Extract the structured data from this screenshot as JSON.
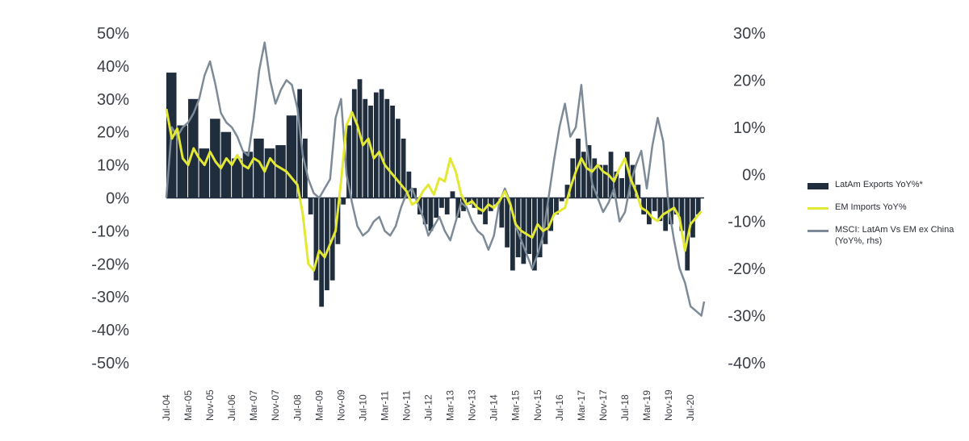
{
  "chart_data": {
    "type": "bar+line",
    "title": "",
    "colors": {
      "exports": "#1f2d3d",
      "imports": "#e3e833",
      "msci": "#7d8a97",
      "text": "#3b3f46"
    },
    "y_left": {
      "ylim": [
        -50,
        50
      ],
      "ticks": [
        "50%",
        "40%",
        "30%",
        "20%",
        "10%",
        "0%",
        "-10%",
        "-20%",
        "-30%",
        "-40%",
        "-50%"
      ]
    },
    "y_right": {
      "ylim": [
        -40,
        30
      ],
      "ticks": [
        "30%",
        "20%",
        "10%",
        "0%",
        "-10%",
        "-20%",
        "-30%",
        "-40%"
      ]
    },
    "x_ticks": [
      "Jul-04",
      "Mar-05",
      "Nov-05",
      "Jul-06",
      "Mar-07",
      "Nov-07",
      "Jul-08",
      "Mar-09",
      "Nov-09",
      "Jul-10",
      "Mar-11",
      "Nov-11",
      "Jul-12",
      "Mar-13",
      "Nov-13",
      "Jul-14",
      "Mar-15",
      "Nov-15",
      "Jul-16",
      "Mar-17",
      "Nov-17",
      "Jul-18",
      "Mar-19",
      "Nov-19",
      "Jul-20"
    ],
    "series": [
      {
        "name": "LatAm Exports YoY%*",
        "type": "bar",
        "axis": "left",
        "points": [
          [
            "Jul-04",
            38
          ],
          [
            "Nov-04",
            22
          ],
          [
            "Mar-05",
            30
          ],
          [
            "Jul-05",
            15
          ],
          [
            "Nov-05",
            24
          ],
          [
            "Mar-06",
            20
          ],
          [
            "Jul-06",
            12
          ],
          [
            "Nov-06",
            14
          ],
          [
            "Mar-07",
            18
          ],
          [
            "Jul-07",
            15
          ],
          [
            "Nov-07",
            16
          ],
          [
            "Mar-08",
            25
          ],
          [
            "Jul-08",
            33
          ],
          [
            "Sep-08",
            18
          ],
          [
            "Nov-08",
            -5
          ],
          [
            "Jan-09",
            -25
          ],
          [
            "Mar-09",
            -33
          ],
          [
            "May-09",
            -28
          ],
          [
            "Jul-09",
            -25
          ],
          [
            "Sep-09",
            -14
          ],
          [
            "Nov-09",
            -2
          ],
          [
            "Jan-10",
            22
          ],
          [
            "Mar-10",
            33
          ],
          [
            "May-10",
            36
          ],
          [
            "Jul-10",
            30
          ],
          [
            "Sep-10",
            28
          ],
          [
            "Nov-10",
            32
          ],
          [
            "Jan-11",
            33
          ],
          [
            "Mar-11",
            30
          ],
          [
            "May-11",
            28
          ],
          [
            "Jul-11",
            24
          ],
          [
            "Sep-11",
            18
          ],
          [
            "Nov-11",
            8
          ],
          [
            "Jan-12",
            3
          ],
          [
            "Mar-12",
            -5
          ],
          [
            "May-12",
            -8
          ],
          [
            "Jul-12",
            -10
          ],
          [
            "Sep-12",
            -6
          ],
          [
            "Nov-12",
            -3
          ],
          [
            "Jan-13",
            -5
          ],
          [
            "Mar-13",
            2
          ],
          [
            "May-13",
            -6
          ],
          [
            "Jul-13",
            -4
          ],
          [
            "Sep-13",
            -2
          ],
          [
            "Nov-13",
            -3
          ],
          [
            "Jan-14",
            -5
          ],
          [
            "Mar-14",
            -8
          ],
          [
            "May-14",
            -4
          ],
          [
            "Jul-14",
            -2
          ],
          [
            "Sep-14",
            -9
          ],
          [
            "Nov-14",
            -15
          ],
          [
            "Jan-15",
            -22
          ],
          [
            "Mar-15",
            -18
          ],
          [
            "May-15",
            -20
          ],
          [
            "Jul-15",
            -17
          ],
          [
            "Sep-15",
            -22
          ],
          [
            "Nov-15",
            -18
          ],
          [
            "Jan-16",
            -14
          ],
          [
            "Mar-16",
            -10
          ],
          [
            "May-16",
            -5
          ],
          [
            "Jul-16",
            -1
          ],
          [
            "Sep-16",
            4
          ],
          [
            "Nov-16",
            12
          ],
          [
            "Jan-17",
            18
          ],
          [
            "Mar-17",
            14
          ],
          [
            "May-17",
            16
          ],
          [
            "Jul-17",
            12
          ],
          [
            "Sep-17",
            10
          ],
          [
            "Nov-17",
            10
          ],
          [
            "Jan-18",
            14
          ],
          [
            "Mar-18",
            8
          ],
          [
            "May-18",
            6
          ],
          [
            "Jul-18",
            14
          ],
          [
            "Sep-18",
            10
          ],
          [
            "Nov-18",
            4
          ],
          [
            "Jan-19",
            -5
          ],
          [
            "Mar-19",
            -8
          ],
          [
            "May-19",
            -4
          ],
          [
            "Jul-19",
            -7
          ],
          [
            "Sep-19",
            -10
          ],
          [
            "Nov-19",
            -8
          ],
          [
            "Jan-20",
            -5
          ],
          [
            "Mar-20",
            -10
          ],
          [
            "May-20",
            -22
          ],
          [
            "Jul-20",
            -12
          ],
          [
            "Sep-20",
            -5
          ],
          [
            "Nov-20",
            -1
          ]
        ]
      },
      {
        "name": "EM Imports YoY%",
        "type": "line",
        "axis": "left",
        "points": [
          [
            "Jul-04",
            27
          ],
          [
            "Sep-04",
            18
          ],
          [
            "Nov-04",
            21
          ],
          [
            "Jan-05",
            12
          ],
          [
            "Mar-05",
            10
          ],
          [
            "May-05",
            15
          ],
          [
            "Jul-05",
            12
          ],
          [
            "Sep-05",
            10
          ],
          [
            "Nov-05",
            14
          ],
          [
            "Jan-06",
            11
          ],
          [
            "Mar-06",
            9
          ],
          [
            "May-06",
            12
          ],
          [
            "Jul-06",
            10
          ],
          [
            "Sep-06",
            13
          ],
          [
            "Nov-06",
            10
          ],
          [
            "Jan-07",
            9
          ],
          [
            "Mar-07",
            12
          ],
          [
            "May-07",
            11
          ],
          [
            "Jul-07",
            8
          ],
          [
            "Sep-07",
            12
          ],
          [
            "Nov-07",
            10
          ],
          [
            "Jan-08",
            9
          ],
          [
            "Mar-08",
            8
          ],
          [
            "May-08",
            6
          ],
          [
            "Jul-08",
            4
          ],
          [
            "Sep-08",
            -5
          ],
          [
            "Nov-08",
            -20
          ],
          [
            "Jan-09",
            -22
          ],
          [
            "Mar-09",
            -16
          ],
          [
            "May-09",
            -18
          ],
          [
            "Jul-09",
            -14
          ],
          [
            "Sep-09",
            -10
          ],
          [
            "Nov-09",
            5
          ],
          [
            "Jan-10",
            22
          ],
          [
            "Mar-10",
            26
          ],
          [
            "May-10",
            22
          ],
          [
            "Jul-10",
            16
          ],
          [
            "Sep-10",
            18
          ],
          [
            "Nov-10",
            12
          ],
          [
            "Jan-11",
            14
          ],
          [
            "Mar-11",
            10
          ],
          [
            "May-11",
            8
          ],
          [
            "Jul-11",
            6
          ],
          [
            "Sep-11",
            4
          ],
          [
            "Nov-11",
            2
          ],
          [
            "Jan-12",
            -2
          ],
          [
            "Mar-12",
            -1
          ],
          [
            "May-12",
            2
          ],
          [
            "Jul-12",
            4
          ],
          [
            "Sep-12",
            1
          ],
          [
            "Nov-12",
            6
          ],
          [
            "Jan-13",
            5
          ],
          [
            "Mar-13",
            12
          ],
          [
            "May-13",
            8
          ],
          [
            "Jul-13",
            1
          ],
          [
            "Sep-13",
            -2
          ],
          [
            "Nov-13",
            -1
          ],
          [
            "Jan-14",
            -3
          ],
          [
            "Mar-14",
            -4
          ],
          [
            "May-14",
            -2
          ],
          [
            "Jul-14",
            -3
          ],
          [
            "Sep-14",
            -1
          ],
          [
            "Nov-14",
            2
          ],
          [
            "Jan-15",
            -2
          ],
          [
            "Mar-15",
            -8
          ],
          [
            "May-15",
            -10
          ],
          [
            "Jul-15",
            -11
          ],
          [
            "Sep-15",
            -12
          ],
          [
            "Nov-15",
            -8
          ],
          [
            "Jan-16",
            -10
          ],
          [
            "Mar-16",
            -9
          ],
          [
            "May-16",
            -5
          ],
          [
            "Jul-16",
            -4
          ],
          [
            "Sep-16",
            -3
          ],
          [
            "Nov-16",
            3
          ],
          [
            "Jan-17",
            8
          ],
          [
            "Mar-17",
            12
          ],
          [
            "May-17",
            9
          ],
          [
            "Jul-17",
            8
          ],
          [
            "Sep-17",
            10
          ],
          [
            "Nov-17",
            8
          ],
          [
            "Jan-18",
            7
          ],
          [
            "Mar-18",
            5
          ],
          [
            "May-18",
            9
          ],
          [
            "Jul-18",
            12
          ],
          [
            "Sep-18",
            6
          ],
          [
            "Nov-18",
            2
          ],
          [
            "Jan-19",
            -3
          ],
          [
            "Mar-19",
            -4
          ],
          [
            "May-19",
            -6
          ],
          [
            "Jul-19",
            -7
          ],
          [
            "Sep-19",
            -5
          ],
          [
            "Nov-19",
            -4
          ],
          [
            "Jan-20",
            -3
          ],
          [
            "Mar-20",
            -6
          ],
          [
            "May-20",
            -16
          ],
          [
            "Jul-20",
            -8
          ],
          [
            "Sep-20",
            -6
          ],
          [
            "Nov-20",
            -4
          ]
        ]
      },
      {
        "name": "MSCI: LatAm Vs EM ex China (YoY%, rhs)",
        "type": "line",
        "axis": "right",
        "points": [
          [
            "Jul-04",
            -5
          ],
          [
            "Sep-04",
            10
          ],
          [
            "Nov-04",
            8
          ],
          [
            "Jan-05",
            10
          ],
          [
            "Mar-05",
            11
          ],
          [
            "May-05",
            13
          ],
          [
            "Jul-05",
            16
          ],
          [
            "Sep-05",
            21
          ],
          [
            "Nov-05",
            24
          ],
          [
            "Jan-06",
            19
          ],
          [
            "Mar-06",
            13
          ],
          [
            "May-06",
            11
          ],
          [
            "Jul-06",
            10
          ],
          [
            "Sep-06",
            8
          ],
          [
            "Nov-06",
            5
          ],
          [
            "Jan-07",
            4
          ],
          [
            "Mar-07",
            12
          ],
          [
            "May-07",
            22
          ],
          [
            "Jul-07",
            28
          ],
          [
            "Sep-07",
            20
          ],
          [
            "Nov-07",
            15
          ],
          [
            "Jan-08",
            18
          ],
          [
            "Mar-08",
            20
          ],
          [
            "May-08",
            19
          ],
          [
            "Jul-08",
            14
          ],
          [
            "Sep-08",
            4
          ],
          [
            "Nov-08",
            -1
          ],
          [
            "Jan-09",
            -4
          ],
          [
            "Mar-09",
            -5
          ],
          [
            "May-09",
            -3
          ],
          [
            "Jul-09",
            -1
          ],
          [
            "Sep-09",
            12
          ],
          [
            "Nov-09",
            16
          ],
          [
            "Jan-10",
            0
          ],
          [
            "Mar-10",
            -6
          ],
          [
            "May-10",
            -11
          ],
          [
            "Jul-10",
            -13
          ],
          [
            "Sep-10",
            -12
          ],
          [
            "Nov-10",
            -10
          ],
          [
            "Jan-11",
            -9
          ],
          [
            "Mar-11",
            -12
          ],
          [
            "May-11",
            -13
          ],
          [
            "Jul-11",
            -11
          ],
          [
            "Sep-11",
            -7
          ],
          [
            "Nov-11",
            -4
          ],
          [
            "Jan-12",
            -3
          ],
          [
            "Mar-12",
            -6
          ],
          [
            "May-12",
            -9
          ],
          [
            "Jul-12",
            -13
          ],
          [
            "Sep-12",
            -11
          ],
          [
            "Nov-12",
            -9
          ],
          [
            "Jan-13",
            -12
          ],
          [
            "Mar-13",
            -14
          ],
          [
            "May-13",
            -10
          ],
          [
            "Jul-13",
            -6
          ],
          [
            "Sep-13",
            -7
          ],
          [
            "Nov-13",
            -10
          ],
          [
            "Jan-14",
            -12
          ],
          [
            "Mar-14",
            -13
          ],
          [
            "May-14",
            -16
          ],
          [
            "Jul-14",
            -13
          ],
          [
            "Sep-14",
            -6
          ],
          [
            "Nov-14",
            -3
          ],
          [
            "Jan-15",
            -6
          ],
          [
            "Mar-15",
            -11
          ],
          [
            "May-15",
            -14
          ],
          [
            "Jul-15",
            -17
          ],
          [
            "Sep-15",
            -20
          ],
          [
            "Nov-15",
            -17
          ],
          [
            "Jan-16",
            -13
          ],
          [
            "Mar-16",
            -5
          ],
          [
            "May-16",
            3
          ],
          [
            "Jul-16",
            10
          ],
          [
            "Sep-16",
            15
          ],
          [
            "Nov-16",
            8
          ],
          [
            "Jan-17",
            10
          ],
          [
            "Mar-17",
            19
          ],
          [
            "May-17",
            6
          ],
          [
            "Jul-17",
            -2
          ],
          [
            "Sep-17",
            -5
          ],
          [
            "Nov-17",
            -8
          ],
          [
            "Jan-18",
            -6
          ],
          [
            "Mar-18",
            -3
          ],
          [
            "May-18",
            -10
          ],
          [
            "Jul-18",
            -8
          ],
          [
            "Sep-18",
            -2
          ],
          [
            "Nov-18",
            2
          ],
          [
            "Jan-19",
            5
          ],
          [
            "Mar-19",
            -3
          ],
          [
            "May-19",
            6
          ],
          [
            "Jul-19",
            12
          ],
          [
            "Sep-19",
            7
          ],
          [
            "Nov-19",
            -7
          ],
          [
            "Jan-20",
            -14
          ],
          [
            "Mar-20",
            -20
          ],
          [
            "May-20",
            -23
          ],
          [
            "Jul-20",
            -28
          ],
          [
            "Sep-20",
            -29
          ],
          [
            "Nov-20",
            -30
          ],
          [
            "Dec-20",
            -27
          ]
        ]
      }
    ]
  }
}
